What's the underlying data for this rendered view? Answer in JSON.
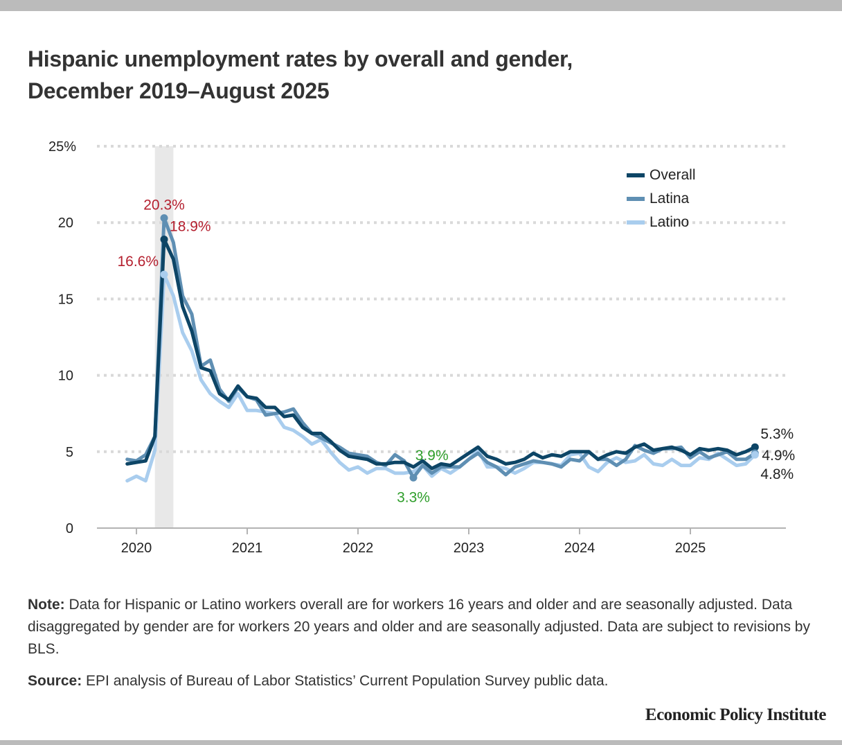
{
  "title": {
    "line1": "Hispanic unemployment rates by overall and gender,",
    "line2": "December 2019–August 2025"
  },
  "chart_data": {
    "type": "line",
    "title": "Hispanic unemployment rates by overall and gender, December 2019–August 2025",
    "xlabel": "",
    "ylabel": "",
    "ylim": [
      0,
      25
    ],
    "grid": true,
    "x": [
      "2019-12",
      "2020-01",
      "2020-02",
      "2020-03",
      "2020-04",
      "2020-05",
      "2020-06",
      "2020-07",
      "2020-08",
      "2020-09",
      "2020-10",
      "2020-11",
      "2020-12",
      "2021-01",
      "2021-02",
      "2021-03",
      "2021-04",
      "2021-05",
      "2021-06",
      "2021-07",
      "2021-08",
      "2021-09",
      "2021-10",
      "2021-11",
      "2021-12",
      "2022-01",
      "2022-02",
      "2022-03",
      "2022-04",
      "2022-05",
      "2022-06",
      "2022-07",
      "2022-08",
      "2022-09",
      "2022-10",
      "2022-11",
      "2022-12",
      "2023-01",
      "2023-02",
      "2023-03",
      "2023-04",
      "2023-05",
      "2023-06",
      "2023-07",
      "2023-08",
      "2023-09",
      "2023-10",
      "2023-11",
      "2023-12",
      "2024-01",
      "2024-02",
      "2024-03",
      "2024-04",
      "2024-05",
      "2024-06",
      "2024-07",
      "2024-08",
      "2024-09",
      "2024-10",
      "2024-11",
      "2024-12",
      "2025-01",
      "2025-02",
      "2025-03",
      "2025-04",
      "2025-05",
      "2025-06",
      "2025-07",
      "2025-08"
    ],
    "x_ticks": [
      {
        "label": "2020",
        "month": "2020-01"
      },
      {
        "label": "2021",
        "month": "2021-01"
      },
      {
        "label": "2022",
        "month": "2022-01"
      },
      {
        "label": "2023",
        "month": "2023-01"
      },
      {
        "label": "2024",
        "month": "2024-01"
      },
      {
        "label": "2025",
        "month": "2025-01"
      }
    ],
    "y_ticks": [
      {
        "value": 0,
        "label": "0"
      },
      {
        "value": 5,
        "label": "5"
      },
      {
        "value": 10,
        "label": "10"
      },
      {
        "value": 15,
        "label": "15"
      },
      {
        "value": 20,
        "label": "20"
      },
      {
        "value": 25,
        "label": "25%"
      }
    ],
    "recession_shading": {
      "start": "2020-03",
      "end": "2020-05",
      "color": "#e8e8e8"
    },
    "legend": {
      "placement": "top-right",
      "entries": [
        {
          "label": "Overall",
          "color": "#0d4566"
        },
        {
          "label": "Latina",
          "color": "#5f8fb3"
        },
        {
          "label": "Latino",
          "color": "#a9cdee"
        }
      ]
    },
    "series": [
      {
        "name": "Latino",
        "color": "#a9cdee",
        "values": [
          3.1,
          3.4,
          3.1,
          5.1,
          16.6,
          15.2,
          12.8,
          11.6,
          9.7,
          8.8,
          8.3,
          7.9,
          8.8,
          7.7,
          7.7,
          7.6,
          7.5,
          6.6,
          6.4,
          6.0,
          5.5,
          5.8,
          5.0,
          4.3,
          3.8,
          4.0,
          3.6,
          3.9,
          3.9,
          3.6,
          3.6,
          3.7,
          4.1,
          3.4,
          3.9,
          3.6,
          4.0,
          4.5,
          5.1,
          4.0,
          4.0,
          3.9,
          3.6,
          3.9,
          4.3,
          4.3,
          4.2,
          4.1,
          4.8,
          4.9,
          4.0,
          3.7,
          4.3,
          4.6,
          4.3,
          4.4,
          4.8,
          4.2,
          4.1,
          4.5,
          4.1,
          4.1,
          4.6,
          4.5,
          4.9,
          4.5,
          4.1,
          4.2,
          4.8
        ]
      },
      {
        "name": "Latina",
        "color": "#5f8fb3",
        "values": [
          4.5,
          4.4,
          4.8,
          6.0,
          20.3,
          18.7,
          15.2,
          14.0,
          10.6,
          11.0,
          9.1,
          8.3,
          9.2,
          8.6,
          8.4,
          7.4,
          7.5,
          7.6,
          7.8,
          6.9,
          6.2,
          5.9,
          5.6,
          5.3,
          4.9,
          4.8,
          4.7,
          4.3,
          4.1,
          4.8,
          4.4,
          3.3,
          4.1,
          3.6,
          4.0,
          4.0,
          4.0,
          4.5,
          4.9,
          4.3,
          4.0,
          3.5,
          4.0,
          4.2,
          4.4,
          4.3,
          4.2,
          4.0,
          4.5,
          4.4,
          5.0,
          4.5,
          4.5,
          4.1,
          4.5,
          5.4,
          5.1,
          4.9,
          5.2,
          5.2,
          5.3,
          4.6,
          5.0,
          4.6,
          4.8,
          5.0,
          4.5,
          4.5,
          4.9
        ]
      },
      {
        "name": "Overall",
        "color": "#0d4566",
        "values": [
          4.2,
          4.3,
          4.4,
          6.0,
          18.9,
          17.6,
          14.5,
          12.9,
          10.5,
          10.3,
          8.8,
          8.4,
          9.3,
          8.6,
          8.5,
          7.9,
          7.9,
          7.3,
          7.4,
          6.6,
          6.2,
          6.2,
          5.7,
          5.1,
          4.7,
          4.6,
          4.5,
          4.2,
          4.2,
          4.3,
          4.3,
          4.0,
          4.4,
          3.9,
          4.2,
          4.1,
          4.5,
          4.9,
          5.3,
          4.7,
          4.5,
          4.2,
          4.3,
          4.5,
          4.9,
          4.6,
          4.8,
          4.7,
          5.0,
          5.0,
          5.0,
          4.5,
          4.8,
          5.0,
          4.9,
          5.3,
          5.5,
          5.1,
          5.2,
          5.3,
          5.1,
          4.8,
          5.2,
          5.1,
          5.2,
          5.1,
          4.8,
          5.0,
          5.3
        ]
      }
    ],
    "annotations": [
      {
        "text": "20.3%",
        "series": "Latina",
        "month": "2020-04",
        "color": "#b41f2e",
        "placement": "above",
        "marker": true
      },
      {
        "text": "18.9%",
        "series": "Overall",
        "month": "2020-04",
        "color": "#b41f2e",
        "placement": "upper-right",
        "marker": true
      },
      {
        "text": "16.6%",
        "series": "Latino",
        "month": "2020-04",
        "color": "#b41f2e",
        "placement": "upper-left",
        "marker": true
      },
      {
        "text": "3.3%",
        "series": "Latina",
        "month": "2022-07",
        "color": "#2f9e2b",
        "placement": "below",
        "marker": true
      },
      {
        "text": "3.9%",
        "series": "Overall",
        "month": "2022-09",
        "color": "#2f9e2b",
        "placement": "above",
        "marker": false
      },
      {
        "text": "5.3%",
        "series": "Overall",
        "month": "2025-08",
        "color": "#222222",
        "placement": "upper-right",
        "marker": true
      },
      {
        "text": "4.9%",
        "series": "Latina",
        "month": "2025-08",
        "color": "#222222",
        "placement": "right",
        "marker": true
      },
      {
        "text": "4.8%",
        "series": "Latino",
        "month": "2025-08",
        "color": "#222222",
        "placement": "lower-right",
        "marker": true
      }
    ]
  },
  "notes": {
    "note_label": "Note:",
    "note_text": " Data for Hispanic or Latino workers overall are for workers 16 years and older and are seasonally adjusted. Data disaggregated by gender are for workers 20 years and older and are seasonally adjusted. Data are subject to revisions by BLS.",
    "source_label": "Source:",
    "source_text": " EPI analysis of Bureau of Labor Statistics’ Current Population Survey public data."
  },
  "branding": {
    "logo_text": "Economic Policy Institute"
  }
}
